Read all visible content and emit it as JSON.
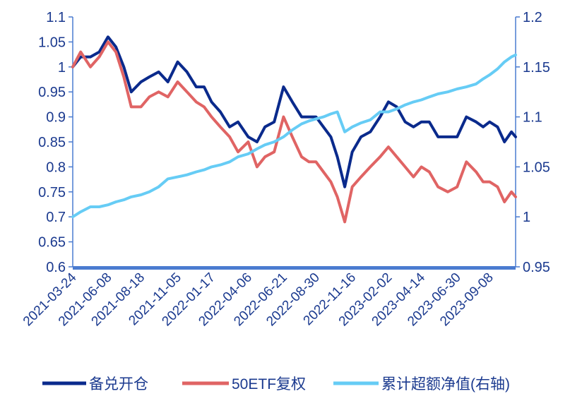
{
  "chart_data": {
    "type": "line",
    "x_ticks": [
      "2021-03-24",
      "2021-06-08",
      "2021-08-18",
      "2021-11-05",
      "2022-01-17",
      "2022-04-06",
      "2022-06-21",
      "2022-08-30",
      "2022-11-16",
      "2023-02-02",
      "2023-04-14",
      "2023-06-30",
      "2023-09-08"
    ],
    "y_left": {
      "min": 0.6,
      "max": 1.1,
      "ticks": [
        "1.1",
        "1.05",
        "1",
        "0.95",
        "0.9",
        "0.85",
        "0.8",
        "0.75",
        "0.7",
        "0.65",
        "0.6"
      ]
    },
    "y_right": {
      "min": 0.95,
      "max": 1.2,
      "ticks": [
        "1.2",
        "1.15",
        "1.1",
        "1.05",
        "1",
        "0.95"
      ]
    },
    "grid": false,
    "legend_position": "bottom",
    "series": [
      {
        "name": "备兑开仓",
        "color": "#0a2a8c",
        "axis": "left",
        "points": [
          [
            "2021-03-24",
            1.0
          ],
          [
            "2021-04-10",
            1.02
          ],
          [
            "2021-05-01",
            1.02
          ],
          [
            "2021-05-20",
            1.03
          ],
          [
            "2021-06-08",
            1.06
          ],
          [
            "2021-06-25",
            1.04
          ],
          [
            "2021-07-12",
            1.0
          ],
          [
            "2021-07-28",
            0.95
          ],
          [
            "2021-08-18",
            0.97
          ],
          [
            "2021-09-05",
            0.98
          ],
          [
            "2021-09-25",
            0.99
          ],
          [
            "2021-10-15",
            0.97
          ],
          [
            "2021-11-05",
            1.01
          ],
          [
            "2021-11-25",
            0.99
          ],
          [
            "2021-12-15",
            0.96
          ],
          [
            "2022-01-01",
            0.96
          ],
          [
            "2022-01-17",
            0.93
          ],
          [
            "2022-02-05",
            0.91
          ],
          [
            "2022-02-25",
            0.88
          ],
          [
            "2022-03-15",
            0.89
          ],
          [
            "2022-04-06",
            0.86
          ],
          [
            "2022-04-25",
            0.85
          ],
          [
            "2022-05-12",
            0.88
          ],
          [
            "2022-06-01",
            0.89
          ],
          [
            "2022-06-21",
            0.96
          ],
          [
            "2022-07-10",
            0.93
          ],
          [
            "2022-07-30",
            0.9
          ],
          [
            "2022-08-15",
            0.9
          ],
          [
            "2022-08-30",
            0.9
          ],
          [
            "2022-09-15",
            0.88
          ],
          [
            "2022-10-01",
            0.86
          ],
          [
            "2022-10-15",
            0.82
          ],
          [
            "2022-10-31",
            0.76
          ],
          [
            "2022-11-16",
            0.83
          ],
          [
            "2022-12-05",
            0.86
          ],
          [
            "2022-12-25",
            0.87
          ],
          [
            "2023-01-15",
            0.9
          ],
          [
            "2023-02-02",
            0.93
          ],
          [
            "2023-02-20",
            0.92
          ],
          [
            "2023-03-10",
            0.89
          ],
          [
            "2023-03-28",
            0.88
          ],
          [
            "2023-04-14",
            0.89
          ],
          [
            "2023-05-01",
            0.89
          ],
          [
            "2023-05-20",
            0.86
          ],
          [
            "2023-06-10",
            0.86
          ],
          [
            "2023-06-30",
            0.86
          ],
          [
            "2023-07-20",
            0.9
          ],
          [
            "2023-08-10",
            0.89
          ],
          [
            "2023-08-25",
            0.88
          ],
          [
            "2023-09-08",
            0.89
          ],
          [
            "2023-09-25",
            0.88
          ],
          [
            "2023-10-10",
            0.85
          ],
          [
            "2023-10-25",
            0.87
          ],
          [
            "2023-11-03",
            0.86
          ]
        ]
      },
      {
        "name": "50ETF复权",
        "color": "#e06464",
        "axis": "left",
        "points": [
          [
            "2021-03-24",
            1.0
          ],
          [
            "2021-04-10",
            1.03
          ],
          [
            "2021-05-01",
            1.0
          ],
          [
            "2021-05-20",
            1.02
          ],
          [
            "2021-06-08",
            1.05
          ],
          [
            "2021-06-25",
            1.03
          ],
          [
            "2021-07-12",
            0.98
          ],
          [
            "2021-07-28",
            0.92
          ],
          [
            "2021-08-18",
            0.92
          ],
          [
            "2021-09-05",
            0.94
          ],
          [
            "2021-09-25",
            0.95
          ],
          [
            "2021-10-15",
            0.94
          ],
          [
            "2021-11-05",
            0.97
          ],
          [
            "2021-11-25",
            0.95
          ],
          [
            "2021-12-15",
            0.93
          ],
          [
            "2022-01-01",
            0.92
          ],
          [
            "2022-01-17",
            0.9
          ],
          [
            "2022-02-05",
            0.88
          ],
          [
            "2022-02-25",
            0.86
          ],
          [
            "2022-03-15",
            0.83
          ],
          [
            "2022-04-06",
            0.85
          ],
          [
            "2022-04-25",
            0.8
          ],
          [
            "2022-05-12",
            0.82
          ],
          [
            "2022-06-01",
            0.83
          ],
          [
            "2022-06-21",
            0.9
          ],
          [
            "2022-07-10",
            0.86
          ],
          [
            "2022-07-30",
            0.82
          ],
          [
            "2022-08-15",
            0.81
          ],
          [
            "2022-08-30",
            0.81
          ],
          [
            "2022-09-15",
            0.79
          ],
          [
            "2022-10-01",
            0.77
          ],
          [
            "2022-10-15",
            0.74
          ],
          [
            "2022-10-31",
            0.69
          ],
          [
            "2022-11-16",
            0.76
          ],
          [
            "2022-12-05",
            0.78
          ],
          [
            "2022-12-25",
            0.8
          ],
          [
            "2023-01-15",
            0.82
          ],
          [
            "2023-02-02",
            0.84
          ],
          [
            "2023-02-20",
            0.82
          ],
          [
            "2023-03-10",
            0.8
          ],
          [
            "2023-03-28",
            0.78
          ],
          [
            "2023-04-14",
            0.8
          ],
          [
            "2023-05-01",
            0.79
          ],
          [
            "2023-05-20",
            0.76
          ],
          [
            "2023-06-10",
            0.75
          ],
          [
            "2023-06-30",
            0.76
          ],
          [
            "2023-07-20",
            0.81
          ],
          [
            "2023-08-10",
            0.79
          ],
          [
            "2023-08-25",
            0.77
          ],
          [
            "2023-09-08",
            0.77
          ],
          [
            "2023-09-25",
            0.76
          ],
          [
            "2023-10-10",
            0.73
          ],
          [
            "2023-10-25",
            0.75
          ],
          [
            "2023-11-03",
            0.74
          ]
        ]
      },
      {
        "name": "累计超额净值(右轴)",
        "color": "#66ccf5",
        "axis": "right",
        "points": [
          [
            "2021-03-24",
            1.0
          ],
          [
            "2021-04-10",
            1.005
          ],
          [
            "2021-05-01",
            1.01
          ],
          [
            "2021-05-20",
            1.01
          ],
          [
            "2021-06-08",
            1.012
          ],
          [
            "2021-06-25",
            1.015
          ],
          [
            "2021-07-12",
            1.017
          ],
          [
            "2021-07-28",
            1.02
          ],
          [
            "2021-08-18",
            1.022
          ],
          [
            "2021-09-05",
            1.025
          ],
          [
            "2021-09-25",
            1.03
          ],
          [
            "2021-10-15",
            1.038
          ],
          [
            "2021-11-05",
            1.04
          ],
          [
            "2021-11-25",
            1.042
          ],
          [
            "2021-12-15",
            1.045
          ],
          [
            "2022-01-01",
            1.047
          ],
          [
            "2022-01-17",
            1.05
          ],
          [
            "2022-02-05",
            1.052
          ],
          [
            "2022-02-25",
            1.055
          ],
          [
            "2022-03-15",
            1.06
          ],
          [
            "2022-04-06",
            1.063
          ],
          [
            "2022-04-25",
            1.068
          ],
          [
            "2022-05-12",
            1.072
          ],
          [
            "2022-06-01",
            1.075
          ],
          [
            "2022-06-21",
            1.08
          ],
          [
            "2022-07-10",
            1.087
          ],
          [
            "2022-07-30",
            1.093
          ],
          [
            "2022-08-15",
            1.096
          ],
          [
            "2022-08-30",
            1.098
          ],
          [
            "2022-09-15",
            1.1
          ],
          [
            "2022-10-01",
            1.103
          ],
          [
            "2022-10-15",
            1.105
          ],
          [
            "2022-10-31",
            1.085
          ],
          [
            "2022-11-16",
            1.09
          ],
          [
            "2022-12-05",
            1.094
          ],
          [
            "2022-12-25",
            1.097
          ],
          [
            "2023-01-15",
            1.105
          ],
          [
            "2023-02-02",
            1.105
          ],
          [
            "2023-02-20",
            1.108
          ],
          [
            "2023-03-10",
            1.112
          ],
          [
            "2023-03-28",
            1.115
          ],
          [
            "2023-04-14",
            1.117
          ],
          [
            "2023-05-01",
            1.12
          ],
          [
            "2023-05-20",
            1.123
          ],
          [
            "2023-06-10",
            1.125
          ],
          [
            "2023-06-30",
            1.128
          ],
          [
            "2023-07-20",
            1.13
          ],
          [
            "2023-08-10",
            1.133
          ],
          [
            "2023-08-25",
            1.138
          ],
          [
            "2023-09-08",
            1.142
          ],
          [
            "2023-09-25",
            1.148
          ],
          [
            "2023-10-10",
            1.155
          ],
          [
            "2023-10-25",
            1.16
          ],
          [
            "2023-11-03",
            1.162
          ]
        ]
      }
    ]
  }
}
